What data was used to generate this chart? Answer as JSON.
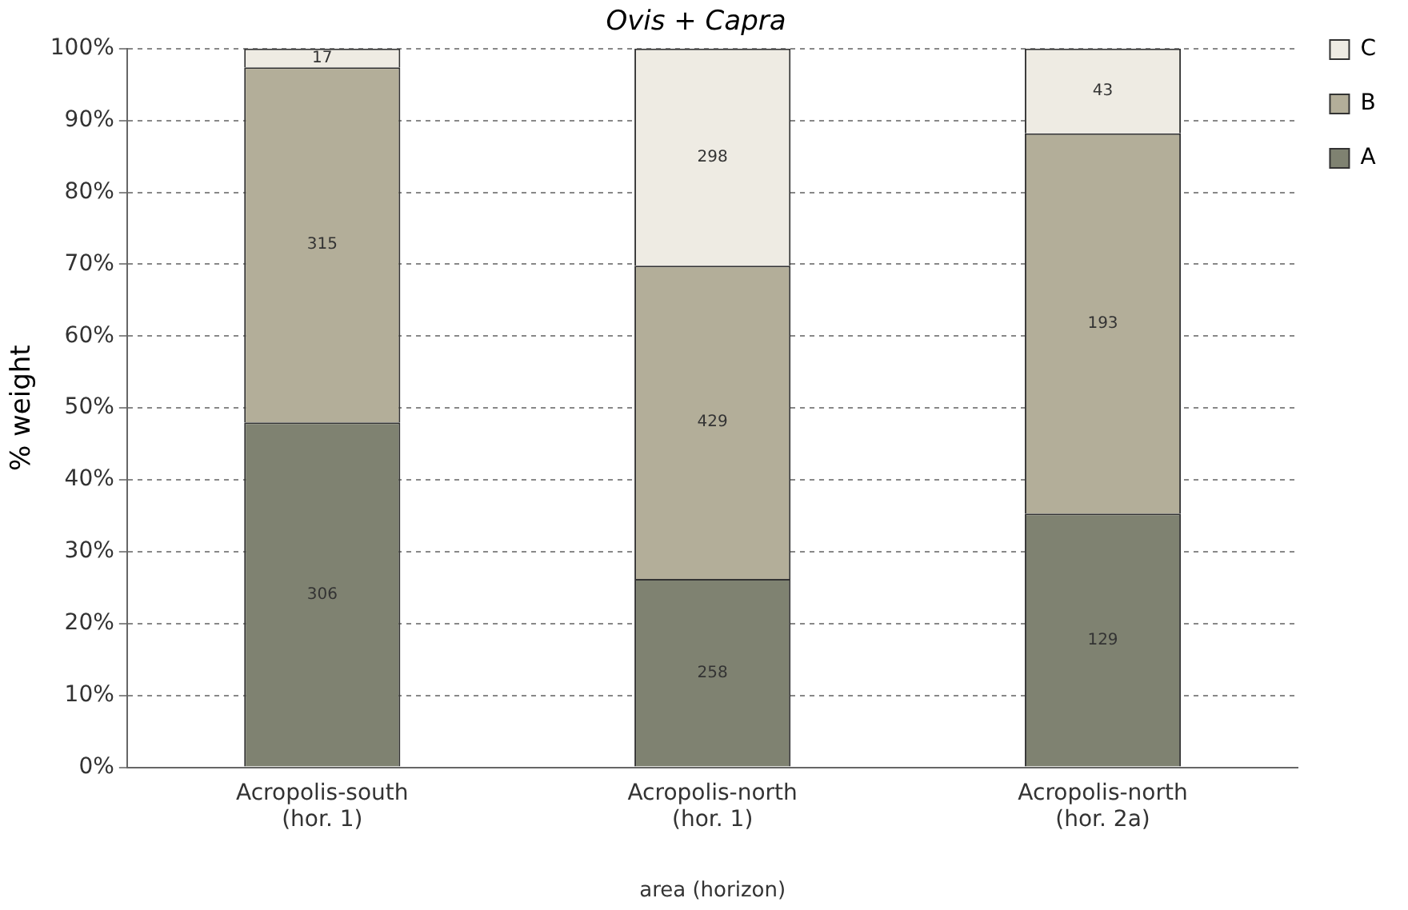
{
  "chart_data": {
    "type": "bar",
    "title": "Ovis + Capra",
    "xlabel": "area (horizon)",
    "ylabel": "% weight",
    "categories": [
      "Acropolis-south\n(hor. 1)",
      "Acropolis-north\n(hor. 1)",
      "Acropolis-north\n(hor. 2a)"
    ],
    "stacked": true,
    "series": [
      {
        "name": "A",
        "color": "#7f8271",
        "values": [
          48.0,
          26.2,
          35.3
        ]
      },
      {
        "name": "B",
        "color": "#b3ae99",
        "values": [
          49.4,
          43.6,
          52.9
        ]
      },
      {
        "name": "C",
        "color": "#eeebe3",
        "values": [
          2.6,
          30.2,
          11.8
        ]
      }
    ],
    "annotations": [
      "306",
      "258",
      "129",
      "315",
      "429",
      "193",
      "17",
      "298",
      "43"
    ],
    "ylim": [
      0,
      100
    ],
    "yticks": [
      {
        "value": 0,
        "label": "0%"
      },
      {
        "value": 10,
        "label": "10%"
      },
      {
        "value": 20,
        "label": "20%"
      },
      {
        "value": 30,
        "label": "30%"
      },
      {
        "value": 40,
        "label": "40%"
      },
      {
        "value": 50,
        "label": "50%"
      },
      {
        "value": 60,
        "label": "60%"
      },
      {
        "value": 70,
        "label": "70%"
      },
      {
        "value": 80,
        "label": "80%"
      },
      {
        "value": 90,
        "label": "90%"
      },
      {
        "value": 100,
        "label": "100%"
      }
    ],
    "grid": "y",
    "legend": "right"
  }
}
